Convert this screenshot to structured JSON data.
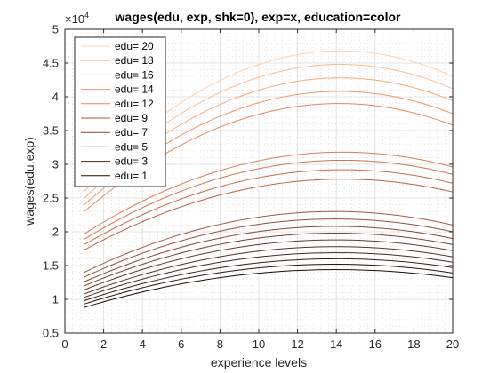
{
  "chart_data": {
    "type": "line",
    "title": "wages(edu, exp, shk=0), exp=x, education=color",
    "xlabel": "experience levels",
    "ylabel": "wages(edu,exp)",
    "xlim": [
      0,
      20
    ],
    "ylim": [
      0.5,
      5
    ],
    "y_exponent_label": "×10",
    "y_exponent_power": "4",
    "xticks": [
      0,
      2,
      4,
      6,
      8,
      10,
      12,
      14,
      16,
      18,
      20
    ],
    "yticks": [
      0.5,
      1,
      1.5,
      2,
      2.5,
      3,
      3.5,
      4,
      4.5,
      5
    ],
    "grid": true,
    "minor_grid": true,
    "legend_position": "top-left",
    "x": [
      1,
      20
    ],
    "series": [
      {
        "name": "edu= 20",
        "color": "#ffd0a8",
        "y1": 2.7,
        "peak": 4.68,
        "y20": 4.3
      },
      {
        "name": "edu= 18",
        "color": "#fabb8c",
        "y1": 2.6,
        "peak": 4.48,
        "y20": 4.12
      },
      {
        "name": "edu= 16",
        "color": "#f2aa7a",
        "y1": 2.5,
        "peak": 4.28,
        "y20": 3.94
      },
      {
        "name": "edu= 14",
        "color": "#e8996c",
        "y1": 2.4,
        "peak": 4.08,
        "y20": 3.75
      },
      {
        "name": "edu= 12",
        "color": "#de8a60",
        "y1": 2.3,
        "peak": 3.9,
        "y20": 3.58
      },
      {
        "name": "",
        "color": "#d67f58",
        "y1": 1.97,
        "peak": 3.18,
        "y20": 2.96
      },
      {
        "name": "",
        "color": "#cc7650",
        "y1": 1.89,
        "peak": 3.06,
        "y20": 2.85
      },
      {
        "name": "",
        "color": "#c26d4a",
        "y1": 1.81,
        "peak": 2.92,
        "y20": 2.72
      },
      {
        "name": "",
        "color": "#b86444",
        "y1": 1.73,
        "peak": 2.78,
        "y20": 2.59
      },
      {
        "name": "edu=  9",
        "color": "#a55a3c",
        "y1": 1.4,
        "peak": 2.3,
        "y20": 2.1
      },
      {
        "name": "",
        "color": "#965236",
        "y1": 1.33,
        "peak": 2.19,
        "y20": 2.0
      },
      {
        "name": "edu=  7",
        "color": "#874a30",
        "y1": 1.26,
        "peak": 2.08,
        "y20": 1.9
      },
      {
        "name": "",
        "color": "#78422a",
        "y1": 1.2,
        "peak": 1.98,
        "y20": 1.81
      },
      {
        "name": "edu=  5",
        "color": "#693a24",
        "y1": 1.14,
        "peak": 1.88,
        "y20": 1.72
      },
      {
        "name": "",
        "color": "#5a321f",
        "y1": 1.08,
        "peak": 1.78,
        "y20": 1.63
      },
      {
        "name": "edu=  3",
        "color": "#4a2919",
        "y1": 1.03,
        "peak": 1.69,
        "y20": 1.55
      },
      {
        "name": "",
        "color": "#3a2013",
        "y1": 0.98,
        "peak": 1.6,
        "y20": 1.47
      },
      {
        "name": "",
        "color": "#2a170e",
        "y1": 0.93,
        "peak": 1.52,
        "y20": 1.39
      },
      {
        "name": "edu=  1",
        "color": "#1a0e08",
        "y1": 0.88,
        "peak": 1.44,
        "y20": 1.32
      }
    ],
    "legend": [
      {
        "label": "edu= 20",
        "color": "#ffd0a8"
      },
      {
        "label": "edu= 18",
        "color": "#fabb8c"
      },
      {
        "label": "edu= 16",
        "color": "#f2aa7a"
      },
      {
        "label": "edu= 14",
        "color": "#e8996c"
      },
      {
        "label": "edu= 12",
        "color": "#de8a60"
      },
      {
        "label": "edu=  9",
        "color": "#a55a3c"
      },
      {
        "label": "edu=  7",
        "color": "#874a30"
      },
      {
        "label": "edu=  5",
        "color": "#693a24"
      },
      {
        "label": "edu=  3",
        "color": "#4a2919"
      },
      {
        "label": "edu=  1",
        "color": "#1a0e08"
      }
    ]
  }
}
